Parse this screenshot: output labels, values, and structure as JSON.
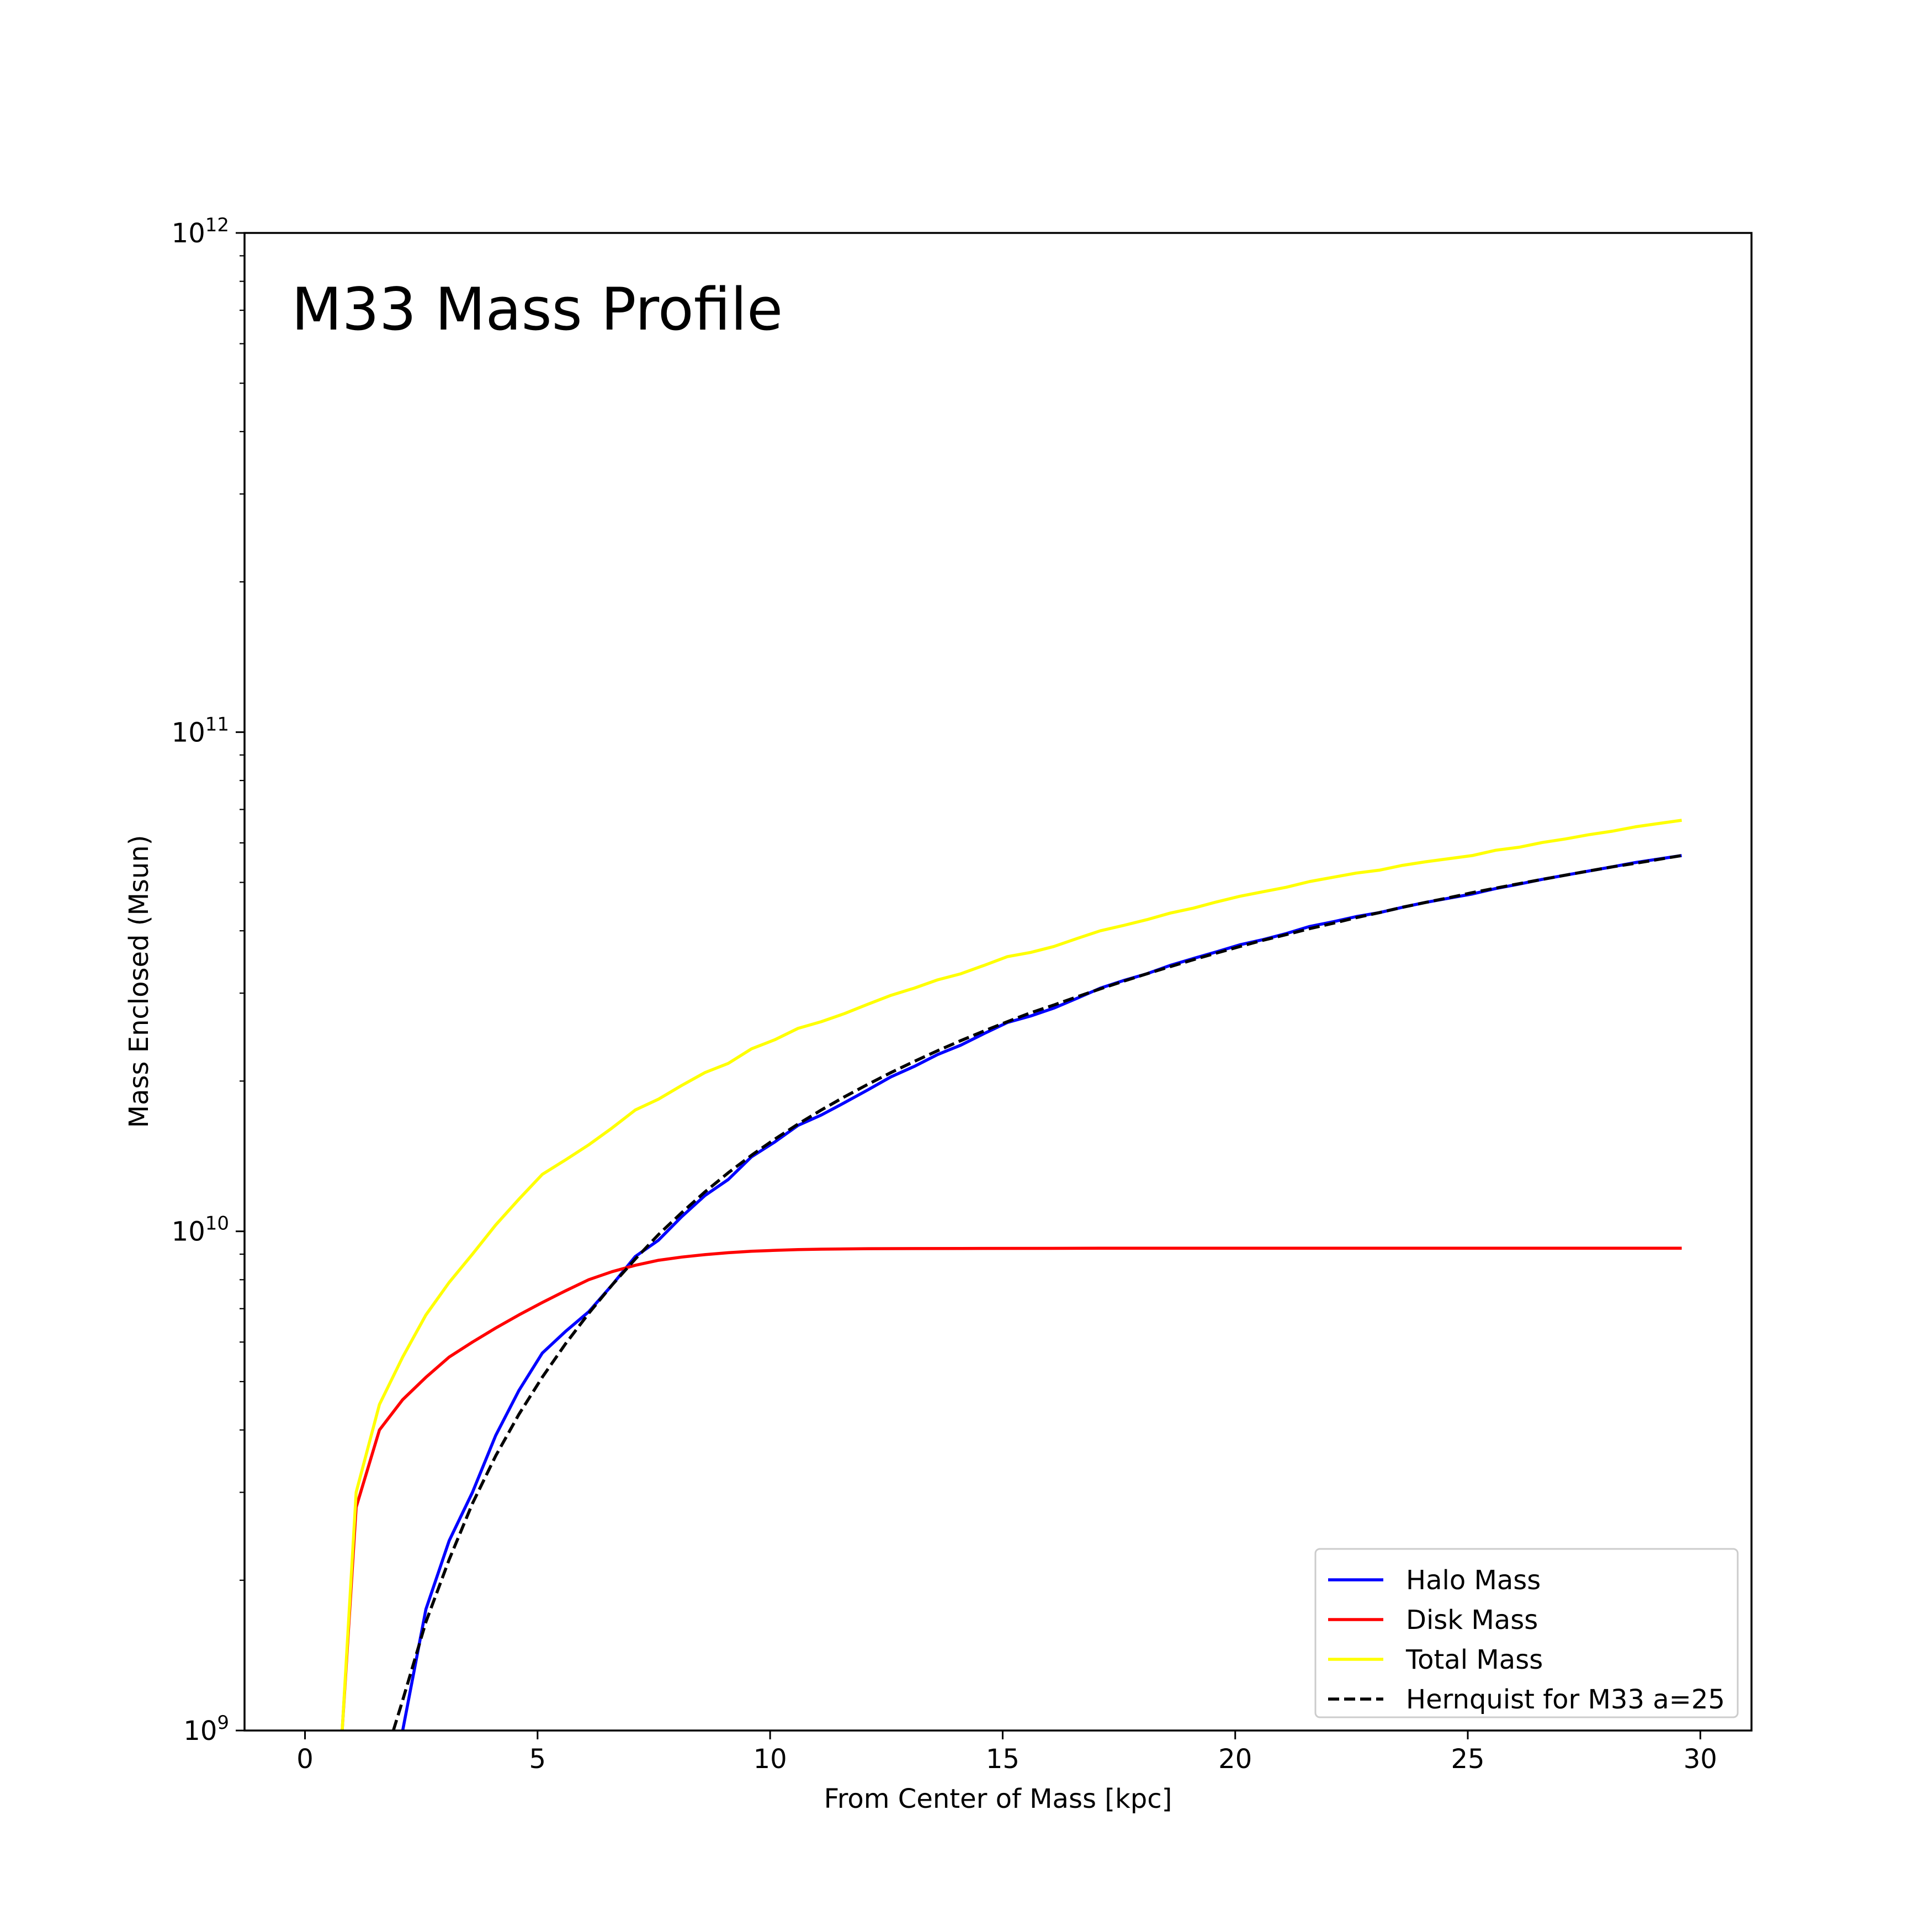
{
  "chart_data": {
    "type": "line",
    "title": "M33 Mass Profile",
    "xlabel": "From Center of Mass [kpc]",
    "ylabel": "Mass Enclosed (Msun)",
    "xlim": [
      -1.3,
      31.1
    ],
    "ylim": [
      1000000000,
      1000000000000
    ],
    "yscale": "log",
    "grid": false,
    "legend_position": "bottom-right",
    "x_ticks": [
      {
        "value": 0,
        "label": "0"
      },
      {
        "value": 5,
        "label": "5"
      },
      {
        "value": 10,
        "label": "10"
      },
      {
        "value": 15,
        "label": "15"
      },
      {
        "value": 20,
        "label": "20"
      },
      {
        "value": 25,
        "label": "25"
      },
      {
        "value": 30,
        "label": "30"
      }
    ],
    "y_ticks": [
      {
        "value": 1000000000,
        "base": "10",
        "exp": "9"
      },
      {
        "value": 10000000000,
        "base": "10",
        "exp": "10"
      },
      {
        "value": 100000000000,
        "base": "10",
        "exp": "11"
      },
      {
        "value": 1000000000000,
        "base": "10",
        "exp": "12"
      }
    ],
    "series": [
      {
        "name": "Halo Mass",
        "color": "#0000ff",
        "dash": "solid",
        "points": [
          [
            2.1,
            1000000000.0
          ],
          [
            2.6,
            1750000000.0
          ],
          [
            3.1,
            2400000000.0
          ],
          [
            3.6,
            3000000000.0
          ],
          [
            4.1,
            3900000000.0
          ],
          [
            4.6,
            4800000000.0
          ],
          [
            5.1,
            5700000000.0
          ],
          [
            5.6,
            6300000000.0
          ],
          [
            6.1,
            6900000000.0
          ],
          [
            6.6,
            7800000000.0
          ],
          [
            7.1,
            8900000000.0
          ],
          [
            7.6,
            9600000000.0
          ],
          [
            8.1,
            10700000000.0
          ],
          [
            8.6,
            11800000000.0
          ],
          [
            9.1,
            12700000000.0
          ],
          [
            9.6,
            14100000000.0
          ],
          [
            10.1,
            15100000000.0
          ],
          [
            10.6,
            16300000000.0
          ],
          [
            11.1,
            17100000000.0
          ],
          [
            11.6,
            18100000000.0
          ],
          [
            12.1,
            19200000000.0
          ],
          [
            12.6,
            20400000000.0
          ],
          [
            13.1,
            21400000000.0
          ],
          [
            13.6,
            22600000000.0
          ],
          [
            14.1,
            23600000000.0
          ],
          [
            14.6,
            24900000000.0
          ],
          [
            15.1,
            26200000000.0
          ],
          [
            15.6,
            27000000000.0
          ],
          [
            16.1,
            28000000000.0
          ],
          [
            16.6,
            29300000000.0
          ],
          [
            17.1,
            30700000000.0
          ],
          [
            17.6,
            31800000000.0
          ],
          [
            18.1,
            32800000000.0
          ],
          [
            18.6,
            34100000000.0
          ],
          [
            19.1,
            35200000000.0
          ],
          [
            19.6,
            36300000000.0
          ],
          [
            20.1,
            37500000000.0
          ],
          [
            20.6,
            38400000000.0
          ],
          [
            21.1,
            39500000000.0
          ],
          [
            21.6,
            40800000000.0
          ],
          [
            22.1,
            41700000000.0
          ],
          [
            22.6,
            42700000000.0
          ],
          [
            23.1,
            43500000000.0
          ],
          [
            23.6,
            44600000000.0
          ],
          [
            24.1,
            45600000000.0
          ],
          [
            24.6,
            46500000000.0
          ],
          [
            25.1,
            47400000000.0
          ],
          [
            25.6,
            48600000000.0
          ],
          [
            26.1,
            49600000000.0
          ],
          [
            26.6,
            50700000000.0
          ],
          [
            27.1,
            51700000000.0
          ],
          [
            27.6,
            52700000000.0
          ],
          [
            28.1,
            53700000000.0
          ],
          [
            28.6,
            54800000000.0
          ],
          [
            29.1,
            55700000000.0
          ],
          [
            29.6,
            56600000000.0
          ]
        ]
      },
      {
        "name": "Disk Mass",
        "color": "#ff0000",
        "dash": "solid",
        "points": [
          [
            0.8,
            1000000000.0
          ],
          [
            1.1,
            2800000000.0
          ],
          [
            1.6,
            4000000000.0
          ],
          [
            2.1,
            4600000000.0
          ],
          [
            2.6,
            5100000000.0
          ],
          [
            3.1,
            5600000000.0
          ],
          [
            3.6,
            6000000000.0
          ],
          [
            4.1,
            6400000000.0
          ],
          [
            4.6,
            6800000000.0
          ],
          [
            5.1,
            7200000000.0
          ],
          [
            5.6,
            7600000000.0
          ],
          [
            6.1,
            8000000000.0
          ],
          [
            6.6,
            8300000000.0
          ],
          [
            7.1,
            8550000000.0
          ],
          [
            7.6,
            8750000000.0
          ],
          [
            8.1,
            8880000000.0
          ],
          [
            8.6,
            8980000000.0
          ],
          [
            9.1,
            9060000000.0
          ],
          [
            9.6,
            9120000000.0
          ],
          [
            10.1,
            9160000000.0
          ],
          [
            10.6,
            9190000000.0
          ],
          [
            11.1,
            9210000000.0
          ],
          [
            12.1,
            9230000000.0
          ],
          [
            14.1,
            9240000000.0
          ],
          [
            17.1,
            9250000000.0
          ],
          [
            20.1,
            9250000000.0
          ],
          [
            25.1,
            9250000000.0
          ],
          [
            29.6,
            9250000000.0
          ]
        ]
      },
      {
        "name": "Total Mass",
        "color": "#ffff00",
        "dash": "solid",
        "points": [
          [
            0.8,
            1000000000.0
          ],
          [
            1.1,
            3000000000.0
          ],
          [
            1.6,
            4500000000.0
          ],
          [
            2.1,
            5600000000.0
          ],
          [
            2.6,
            6800000000.0
          ],
          [
            3.1,
            7900000000.0
          ],
          [
            3.6,
            9000000000.0
          ],
          [
            4.1,
            10300000000.0
          ],
          [
            4.6,
            11600000000.0
          ],
          [
            5.1,
            13000000000.0
          ],
          [
            5.6,
            13900000000.0
          ],
          [
            6.1,
            14900000000.0
          ],
          [
            6.6,
            16100000000.0
          ],
          [
            7.1,
            17500000000.0
          ],
          [
            7.6,
            18400000000.0
          ],
          [
            8.1,
            19600000000.0
          ],
          [
            8.6,
            20800000000.0
          ],
          [
            9.1,
            21700000000.0
          ],
          [
            9.6,
            23200000000.0
          ],
          [
            10.1,
            24200000000.0
          ],
          [
            10.6,
            25500000000.0
          ],
          [
            11.1,
            26300000000.0
          ],
          [
            11.6,
            27300000000.0
          ],
          [
            12.1,
            28500000000.0
          ],
          [
            12.6,
            29700000000.0
          ],
          [
            13.1,
            30700000000.0
          ],
          [
            13.6,
            31900000000.0
          ],
          [
            14.1,
            32800000000.0
          ],
          [
            14.6,
            34100000000.0
          ],
          [
            15.1,
            35500000000.0
          ],
          [
            15.6,
            36200000000.0
          ],
          [
            16.1,
            37200000000.0
          ],
          [
            16.6,
            38600000000.0
          ],
          [
            17.1,
            40000000000.0
          ],
          [
            17.6,
            41000000000.0
          ],
          [
            18.1,
            42100000000.0
          ],
          [
            18.6,
            43400000000.0
          ],
          [
            19.1,
            44400000000.0
          ],
          [
            19.6,
            45700000000.0
          ],
          [
            20.1,
            46900000000.0
          ],
          [
            20.6,
            47900000000.0
          ],
          [
            21.1,
            48900000000.0
          ],
          [
            21.6,
            50200000000.0
          ],
          [
            22.1,
            51200000000.0
          ],
          [
            22.6,
            52200000000.0
          ],
          [
            23.1,
            52900000000.0
          ],
          [
            23.6,
            54100000000.0
          ],
          [
            24.1,
            55000000000.0
          ],
          [
            24.6,
            55800000000.0
          ],
          [
            25.1,
            56600000000.0
          ],
          [
            25.6,
            58000000000.0
          ],
          [
            26.1,
            58800000000.0
          ],
          [
            26.6,
            60100000000.0
          ],
          [
            27.1,
            61100000000.0
          ],
          [
            27.6,
            62300000000.0
          ],
          [
            28.1,
            63300000000.0
          ],
          [
            28.6,
            64600000000.0
          ],
          [
            29.1,
            65600000000.0
          ],
          [
            29.6,
            66600000000.0
          ]
        ]
      },
      {
        "name": "Hernquist for M33 a=25",
        "color": "#000000",
        "dash": "dashed",
        "points": [
          [
            1.9,
            1000000000.0
          ],
          [
            2.1,
            1150000000.0
          ],
          [
            2.6,
            1650000000.0
          ],
          [
            3.1,
            2200000000.0
          ],
          [
            3.6,
            2850000000.0
          ],
          [
            4.1,
            3550000000.0
          ],
          [
            4.6,
            4300000000.0
          ],
          [
            5.1,
            5100000000.0
          ],
          [
            5.6,
            5950000000.0
          ],
          [
            6.1,
            6850000000.0
          ],
          [
            6.6,
            7800000000.0
          ],
          [
            7.1,
            8800000000.0
          ],
          [
            7.6,
            9850000000.0
          ],
          [
            8.1,
            10900000000.0
          ],
          [
            8.6,
            12000000000.0
          ],
          [
            9.1,
            13100000000.0
          ],
          [
            9.6,
            14200000000.0
          ],
          [
            10.1,
            15300000000.0
          ],
          [
            10.6,
            16400000000.0
          ],
          [
            11.1,
            17500000000.0
          ],
          [
            11.6,
            18600000000.0
          ],
          [
            12.1,
            19700000000.0
          ],
          [
            12.6,
            20800000000.0
          ],
          [
            13.1,
            21900000000.0
          ],
          [
            13.6,
            23000000000.0
          ],
          [
            14.1,
            24100000000.0
          ],
          [
            14.6,
            25200000000.0
          ],
          [
            15.1,
            26300000000.0
          ],
          [
            15.6,
            27400000000.0
          ],
          [
            16.1,
            28400000000.0
          ],
          [
            16.6,
            29500000000.0
          ],
          [
            17.1,
            30600000000.0
          ],
          [
            17.6,
            31700000000.0
          ],
          [
            18.1,
            32800000000.0
          ],
          [
            18.6,
            33900000000.0
          ],
          [
            19.1,
            35000000000.0
          ],
          [
            19.6,
            36100000000.0
          ],
          [
            20.1,
            37200000000.0
          ],
          [
            20.6,
            38300000000.0
          ],
          [
            21.1,
            39300000000.0
          ],
          [
            21.6,
            40400000000.0
          ],
          [
            22.1,
            41400000000.0
          ],
          [
            22.6,
            42500000000.0
          ],
          [
            23.1,
            43500000000.0
          ],
          [
            23.6,
            44600000000.0
          ],
          [
            24.1,
            45600000000.0
          ],
          [
            24.6,
            46600000000.0
          ],
          [
            25.1,
            47700000000.0
          ],
          [
            25.6,
            48700000000.0
          ],
          [
            26.1,
            49700000000.0
          ],
          [
            26.6,
            50700000000.0
          ],
          [
            27.1,
            51700000000.0
          ],
          [
            27.6,
            52700000000.0
          ],
          [
            28.1,
            53700000000.0
          ],
          [
            28.6,
            54600000000.0
          ],
          [
            29.1,
            55600000000.0
          ],
          [
            29.6,
            56600000000.0
          ]
        ]
      }
    ]
  }
}
